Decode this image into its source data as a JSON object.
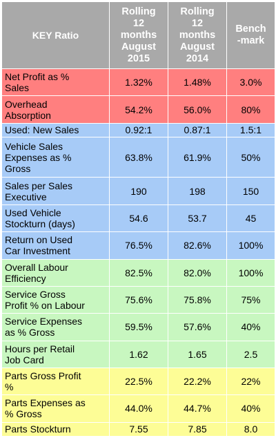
{
  "header": {
    "key_ratio": "KEY Ratio",
    "col_2015": [
      "Rolling",
      "12",
      "months",
      "August",
      "2015"
    ],
    "col_2014": [
      "Rolling",
      "12",
      "months",
      "August",
      "2014"
    ],
    "col_benchmark": [
      "Bench",
      "-mark"
    ]
  },
  "colors": {
    "header": "#a9a9a9",
    "red": "#ff7f7f",
    "blue": "#a7cbf7",
    "green": "#c8f7c0",
    "yellow": "#fdfd96"
  },
  "rows": [
    {
      "group": "red",
      "label_lines": [
        "Net Profit as %",
        "Sales"
      ],
      "v2015": "1.32%",
      "v2014": "1.48%",
      "bench": "3.0%"
    },
    {
      "group": "red",
      "label_lines": [
        "Overhead",
        "Absorption"
      ],
      "v2015": "54.2%",
      "v2014": "56.0%",
      "bench": "80%"
    },
    {
      "group": "blue",
      "label_lines": [
        "Used: New Sales"
      ],
      "v2015": "0.92:1",
      "v2014": "0.87:1",
      "bench": "1.5:1"
    },
    {
      "group": "blue",
      "label_lines": [
        "Vehicle Sales",
        "Expenses as %",
        "Gross"
      ],
      "v2015": "63.8%",
      "v2014": "61.9%",
      "bench": "50%"
    },
    {
      "group": "blue",
      "label_lines": [
        "Sales per Sales",
        "Executive"
      ],
      "v2015": "190",
      "v2014": "198",
      "bench": "150"
    },
    {
      "group": "blue",
      "label_lines": [
        "Used Vehicle",
        "Stockturn (days)"
      ],
      "v2015": "54.6",
      "v2014": "53.7",
      "bench": "45"
    },
    {
      "group": "blue",
      "label_lines": [
        "Return on Used",
        "Car Investment"
      ],
      "v2015": "76.5%",
      "v2014": "82.6%",
      "bench": "100%"
    },
    {
      "group": "green",
      "label_lines": [
        "Overall Labour",
        "Efficiency"
      ],
      "v2015": "82.5%",
      "v2014": "82.0%",
      "bench": "100%"
    },
    {
      "group": "green",
      "label_lines": [
        "Service Gross",
        "Profit % on Labour"
      ],
      "v2015": "75.6%",
      "v2014": "75.8%",
      "bench": "75%"
    },
    {
      "group": "green",
      "label_lines": [
        "Service Expenses",
        "as % Gross"
      ],
      "v2015": "59.5%",
      "v2014": "57.6%",
      "bench": "40%"
    },
    {
      "group": "green",
      "label_lines": [
        "Hours per Retail",
        "Job Card"
      ],
      "v2015": "1.62",
      "v2014": "1.65",
      "bench": "2.5"
    },
    {
      "group": "yellow",
      "label_lines": [
        "Parts Gross Profit",
        "%"
      ],
      "v2015": "22.5%",
      "v2014": "22.2%",
      "bench": "22%"
    },
    {
      "group": "yellow",
      "label_lines": [
        "Parts Expenses as",
        "% Gross"
      ],
      "v2015": "44.0%",
      "v2014": "44.7%",
      "bench": "40%"
    },
    {
      "group": "yellow",
      "label_lines": [
        "Parts Stockturn"
      ],
      "v2015": "7.55",
      "v2014": "7.85",
      "bench": "8.0"
    }
  ]
}
